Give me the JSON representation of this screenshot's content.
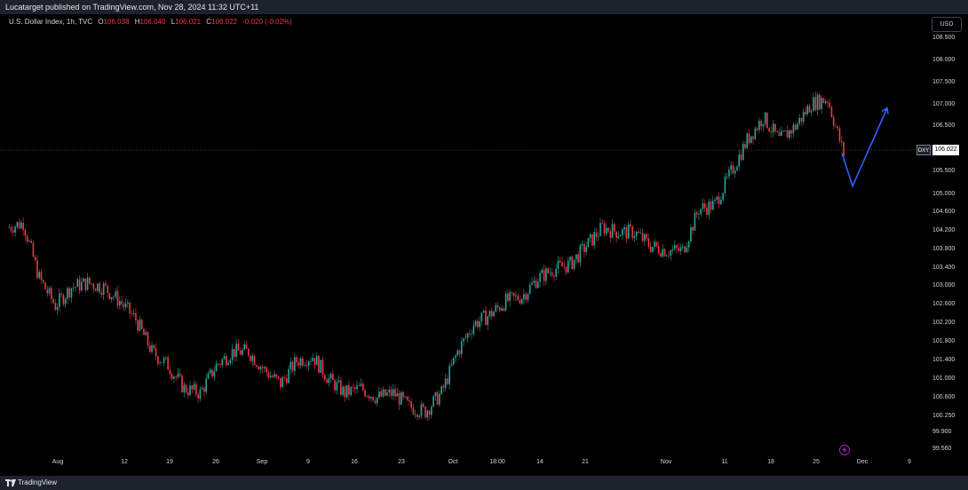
{
  "publisher_line": "Lucatarget published on TradingView.com, Nov 28, 2024 11:32 UTC+11",
  "symbol": {
    "name": "U.S. Dollar Index, 1h, TVC",
    "o_label": "O",
    "o_value": "106.038",
    "h_label": "H",
    "h_value": "106.040",
    "l_label": "L",
    "l_value": "106.021",
    "c_label": "C",
    "c_value": "106.022",
    "change": "-0.020 (-0.02%)"
  },
  "currency_button": "USD",
  "price_axis": {
    "ticks": [
      "108.500",
      "108.000",
      "107.500",
      "107.000",
      "106.500",
      "105.500",
      "105.000",
      "104.600",
      "104.200",
      "103.800",
      "103.400",
      "103.000",
      "102.600",
      "102.200",
      "101.800",
      "101.400",
      "101.000",
      "100.600",
      "100.250",
      "99.900",
      "99.560"
    ],
    "current_label": "DXY",
    "current_price": "106.022"
  },
  "time_axis": [
    "Aug",
    "12",
    "19",
    "26",
    "Sep",
    "9",
    "16",
    "23",
    "Oct",
    "18:00",
    "14",
    "21",
    "Nov",
    "11",
    "18",
    "25",
    "Dec",
    "9"
  ],
  "footer": {
    "brand": "TradingView"
  },
  "colors": {
    "up": "#26a69a",
    "down": "#f23645",
    "projection": "#2962ff",
    "event": "#9c27b0"
  },
  "chart_data": {
    "type": "line",
    "title": "U.S. Dollar Index, 1h, TVC",
    "price_scale": "USD",
    "ylim": [
      99.56,
      108.5
    ],
    "x": [
      "Jul 29",
      "Jul 31",
      "Aug 2",
      "Aug 5",
      "Aug 7",
      "Aug 9",
      "Aug 12",
      "Aug 14",
      "Aug 16",
      "Aug 19",
      "Aug 21",
      "Aug 23",
      "Aug 26",
      "Aug 28",
      "Aug 30",
      "Sep 2",
      "Sep 4",
      "Sep 6",
      "Sep 9",
      "Sep 11",
      "Sep 13",
      "Sep 16",
      "Sep 18",
      "Sep 20",
      "Sep 23",
      "Sep 25",
      "Sep 27",
      "Sep 30",
      "Oct 2",
      "Oct 4",
      "Oct 7",
      "Oct 9",
      "Oct 11",
      "Oct 14",
      "Oct 16",
      "Oct 18",
      "Oct 21",
      "Oct 23",
      "Oct 25",
      "Oct 28",
      "Oct 30",
      "Nov 1",
      "Nov 4",
      "Nov 6",
      "Nov 8",
      "Nov 11",
      "Nov 13",
      "Nov 15",
      "Nov 18",
      "Nov 20",
      "Nov 22",
      "Nov 25",
      "Nov 27"
    ],
    "series": [
      {
        "values": [
          104.4,
          104.5,
          103.3,
          102.7,
          103.1,
          103.2,
          103.1,
          102.8,
          102.4,
          101.7,
          101.4,
          100.9,
          100.8,
          101.4,
          101.7,
          101.7,
          101.3,
          101.0,
          101.5,
          101.6,
          101.1,
          100.8,
          100.9,
          100.7,
          100.8,
          100.5,
          100.4,
          100.8,
          101.7,
          102.3,
          102.5,
          102.8,
          102.9,
          103.3,
          103.5,
          103.6,
          104.0,
          104.4,
          104.3,
          104.3,
          104.0,
          103.9,
          103.9,
          104.8,
          104.9,
          105.6,
          106.3,
          106.8,
          106.3,
          106.6,
          107.1,
          107.2,
          106.0
        ]
      }
    ],
    "projection": [
      {
        "x": "Nov 27",
        "y": 106.02
      },
      {
        "x": "Nov 28",
        "y": 105.3
      },
      {
        "x": "Dec 2",
        "y": 107.0
      }
    ],
    "current_price": 106.022
  }
}
